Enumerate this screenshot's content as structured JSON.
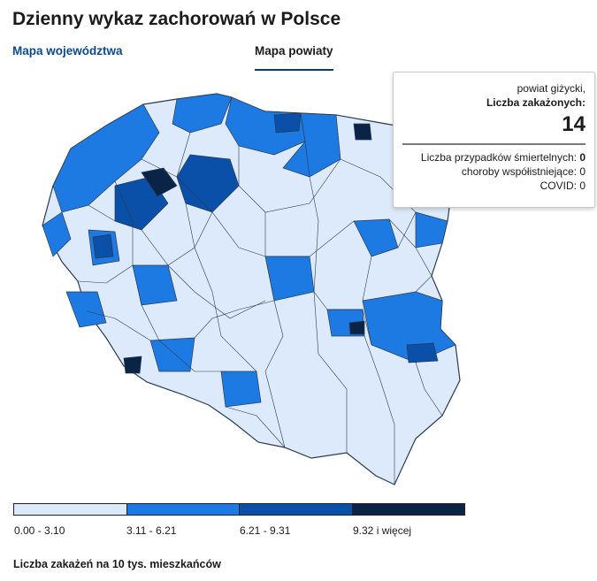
{
  "title": "Dzienny wykaz zachorowań w Polsce",
  "tabs": {
    "voivodeships": "Mapa województwa",
    "counties": "Mapa powiaty"
  },
  "tooltip": {
    "county": "powiat giżycki,",
    "infections_label": "Liczba zakażonych:",
    "infections_value": "14",
    "deaths_label": "Liczba przypadków śmiertelnych:",
    "deaths_value": "0",
    "comorbid_label": "choroby współistniejące:",
    "comorbid_value": "0",
    "covid_label": "COVID:",
    "covid_value": "0"
  },
  "legend": {
    "items": [
      {
        "label": "0.00 - 3.10",
        "color": "#dceafb"
      },
      {
        "label": "3.11 - 6.21",
        "color": "#1e7ae3"
      },
      {
        "label": "6.21 - 9.31",
        "color": "#0a4fa8"
      },
      {
        "label": "9.32 i więcej",
        "color": "#0a2447"
      }
    ],
    "caption": "Liczba zakażeń na 10 tys. mieszkańców"
  }
}
